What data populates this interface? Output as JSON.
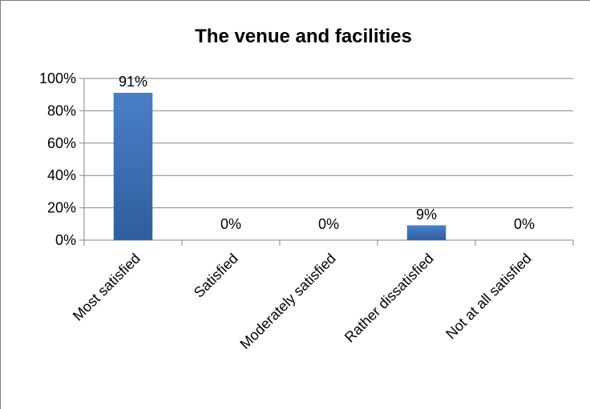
{
  "chart_data": {
    "type": "bar",
    "title": "The venue and facilities",
    "categories": [
      "Most satisfied",
      "Satisfied",
      "Moderately satisfied",
      "Rather dissatisfied",
      "Not at all satisfied"
    ],
    "values": [
      91,
      0,
      0,
      9,
      0
    ],
    "data_labels": [
      "91%",
      "0%",
      "0%",
      "9%",
      "0%"
    ],
    "y_ticks": [
      "0%",
      "20%",
      "40%",
      "60%",
      "80%",
      "100%"
    ],
    "ylim": [
      0,
      100
    ],
    "grid": true,
    "legend": "none",
    "bar_color": "#3f6fb5"
  }
}
